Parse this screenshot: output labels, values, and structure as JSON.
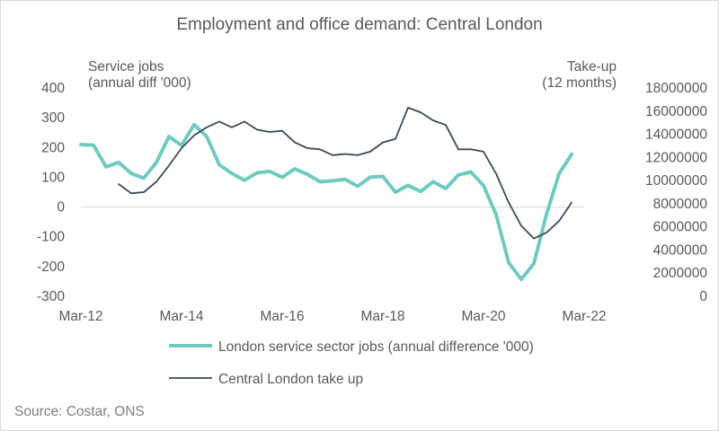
{
  "chart_data": {
    "type": "line",
    "title": "Employment and office demand: Central London",
    "y_left": {
      "label_lines": [
        "Service jobs",
        "(annual diff '000)"
      ],
      "min": -300,
      "max": 400,
      "step": 100,
      "tick_labels": [
        "400",
        "300",
        "200",
        "100",
        "0",
        "-100",
        "-200",
        "-300"
      ]
    },
    "y_right": {
      "label_lines": [
        "Take-up",
        "(12 months)"
      ],
      "min": 0,
      "max": 18000000,
      "step": 2000000,
      "tick_labels": [
        "18000000",
        "16000000",
        "14000000",
        "12000000",
        "10000000",
        "8000000",
        "6000000",
        "4000000",
        "2000000",
        "0"
      ]
    },
    "x_axis": {
      "start": "Mar-12",
      "end": "Mar-22",
      "tick_labels": [
        "Mar-12",
        "Mar-14",
        "Mar-16",
        "Mar-18",
        "Mar-20",
        "Mar-22"
      ],
      "tick_dates": [
        "2012-03",
        "2014-03",
        "2016-03",
        "2018-03",
        "2020-03",
        "2022-03"
      ]
    },
    "legend_position": "bottom",
    "series": [
      {
        "name": "London service sector jobs (annual difference '000)",
        "axis": "left",
        "color": "#6fcbc0",
        "x": [
          "2012-03",
          "2012-06",
          "2012-09",
          "2012-12",
          "2013-03",
          "2013-06",
          "2013-09",
          "2013-12",
          "2014-03",
          "2014-06",
          "2014-09",
          "2014-12",
          "2015-03",
          "2015-06",
          "2015-09",
          "2015-12",
          "2016-03",
          "2016-06",
          "2016-09",
          "2016-12",
          "2017-03",
          "2017-06",
          "2017-09",
          "2017-12",
          "2018-03",
          "2018-06",
          "2018-09",
          "2018-12",
          "2019-03",
          "2019-06",
          "2019-09",
          "2019-12",
          "2020-03",
          "2020-06",
          "2020-09",
          "2020-12",
          "2021-03",
          "2021-06",
          "2021-09",
          "2021-12"
        ],
        "y": [
          210,
          208,
          135,
          150,
          113,
          97,
          150,
          237,
          207,
          277,
          237,
          142,
          113,
          90,
          115,
          120,
          100,
          128,
          110,
          85,
          88,
          93,
          70,
          100,
          103,
          50,
          73,
          52,
          85,
          62,
          108,
          118,
          72,
          -25,
          -187,
          -243,
          -190,
          -25,
          112,
          177
        ]
      },
      {
        "name": "Central London take up",
        "axis": "right",
        "color": "#3b4a56",
        "x": [
          "2012-12",
          "2013-03",
          "2013-06",
          "2013-09",
          "2013-12",
          "2014-03",
          "2014-06",
          "2014-09",
          "2014-12",
          "2015-03",
          "2015-06",
          "2015-09",
          "2015-12",
          "2016-03",
          "2016-06",
          "2016-09",
          "2016-12",
          "2017-03",
          "2017-06",
          "2017-09",
          "2017-12",
          "2018-03",
          "2018-06",
          "2018-09",
          "2018-12",
          "2019-03",
          "2019-06",
          "2019-09",
          "2019-12",
          "2020-03",
          "2020-06",
          "2020-09",
          "2020-12",
          "2021-03",
          "2021-06",
          "2021-09",
          "2021-12"
        ],
        "y": [
          9700000,
          8900000,
          9000000,
          9900000,
          11300000,
          12800000,
          13900000,
          14600000,
          15100000,
          14600000,
          15100000,
          14400000,
          14200000,
          14300000,
          13300000,
          12800000,
          12700000,
          12200000,
          12300000,
          12200000,
          12500000,
          13300000,
          13600000,
          16300000,
          15900000,
          15200000,
          14800000,
          12700000,
          12700000,
          12500000,
          10600000,
          8100000,
          6100000,
          5000000,
          5500000,
          6500000,
          8100000
        ]
      }
    ]
  },
  "source": "Source: Costar, ONS"
}
